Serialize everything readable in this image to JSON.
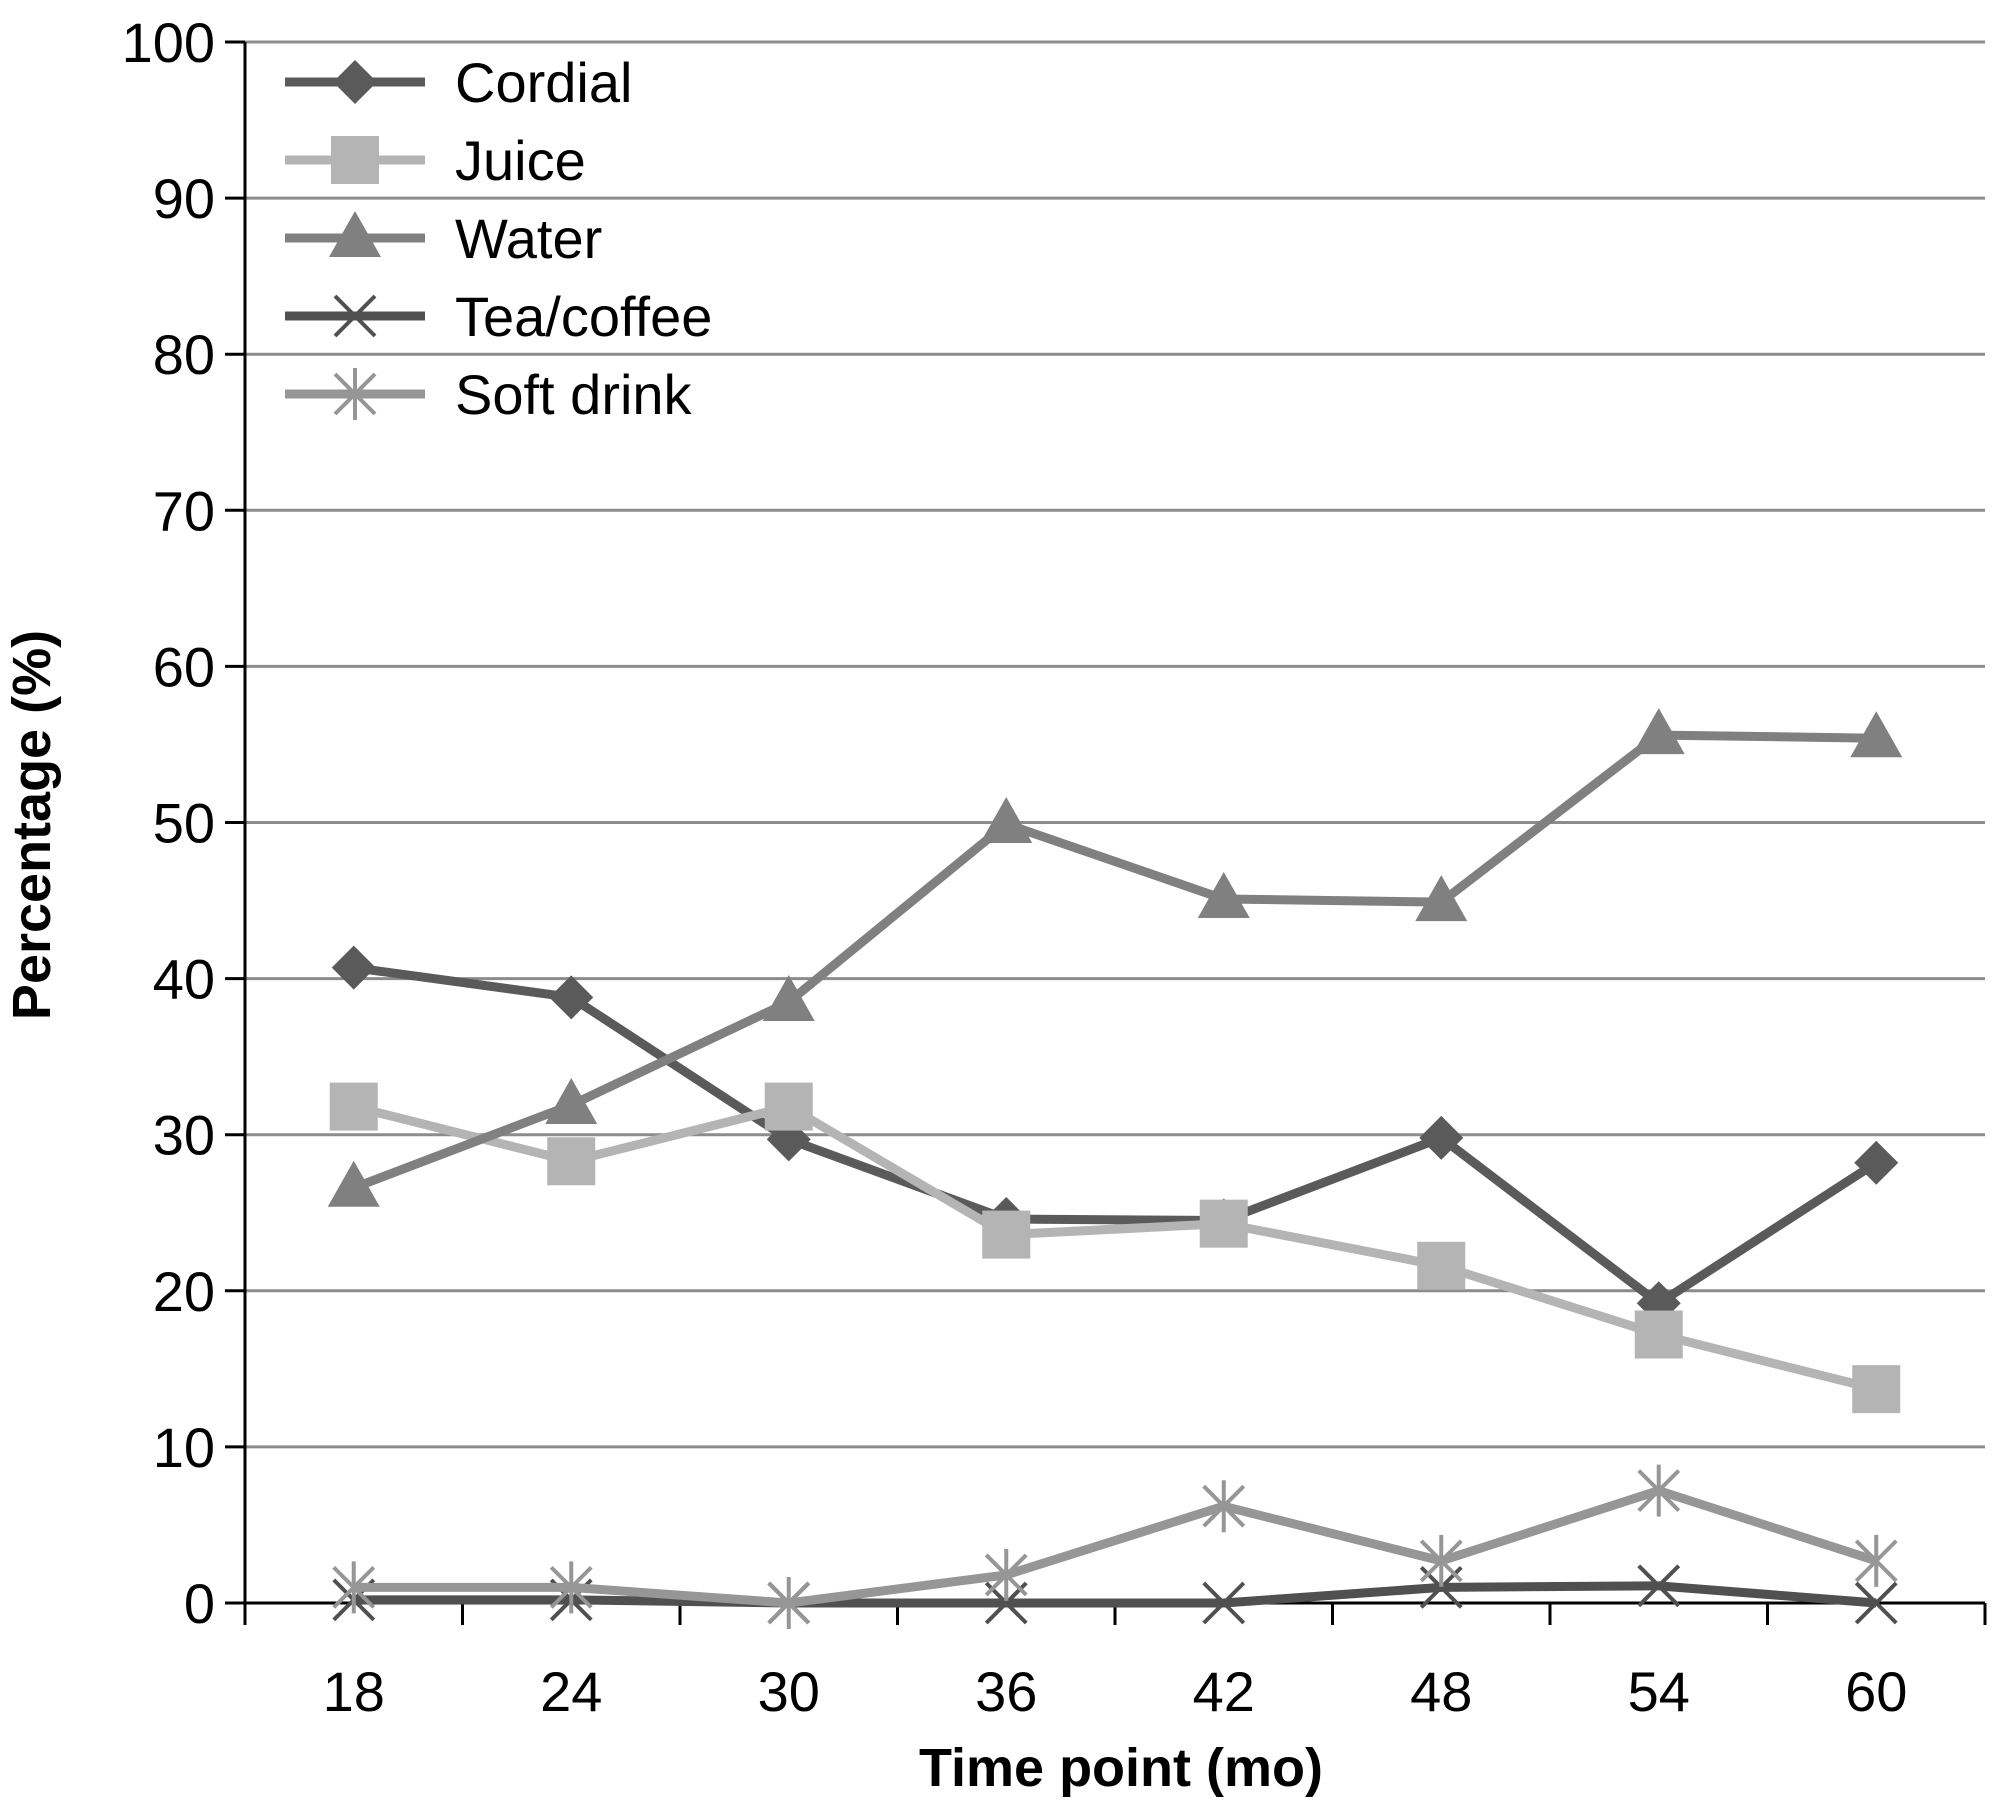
{
  "chart_data": {
    "type": "line",
    "xlabel": "Time point (mo)",
    "ylabel": "Percentage (%)",
    "categories": [
      "18",
      "24",
      "30",
      "36",
      "42",
      "48",
      "54",
      "60"
    ],
    "ylim": [
      0,
      100
    ],
    "yticks": [
      "0",
      "10",
      "20",
      "30",
      "40",
      "50",
      "60",
      "70",
      "80",
      "90",
      "100"
    ],
    "grid": true,
    "legend_position": "top-left",
    "series": [
      {
        "name": "Cordial",
        "values": [
          40.7,
          38.8,
          29.7,
          24.6,
          24.5,
          29.8,
          19.2,
          28.2
        ],
        "color": "#5a5a5a",
        "marker": "diamond-icon"
      },
      {
        "name": "Juice",
        "values": [
          31.8,
          28.3,
          31.8,
          23.6,
          24.3,
          21.6,
          17.2,
          13.7
        ],
        "color": "#b4b4b4",
        "marker": "square-icon"
      },
      {
        "name": "Water",
        "values": [
          26.6,
          31.9,
          38.5,
          49.9,
          45.1,
          44.9,
          55.6,
          55.4
        ],
        "color": "#808080",
        "marker": "triangle-icon"
      },
      {
        "name": "Tea/coffee",
        "values": [
          0.2,
          0.2,
          0,
          0,
          0,
          1.0,
          1.1,
          0
        ],
        "color": "#505050",
        "marker": "cross-icon"
      },
      {
        "name": "Soft drink",
        "values": [
          1.0,
          1.0,
          0,
          1.8,
          6.2,
          2.7,
          7.2,
          2.7
        ],
        "color": "#969696",
        "marker": "asterisk-icon"
      }
    ]
  }
}
